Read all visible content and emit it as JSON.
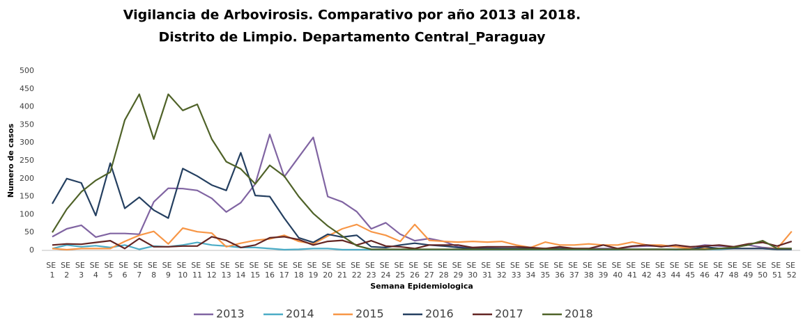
{
  "chart_data": {
    "type": "line",
    "title": "Vigilancia de Arbovirosis. Comparativo por año 2013 al 2018.",
    "subtitle": "Distrito de Limpio. Departamento Central_Paraguay",
    "x_label": "Semana Epidemiologica",
    "y_label": "Numero de casos",
    "categories": [
      "SE 1",
      "SE 2",
      "SE 3",
      "SE 4",
      "SE 5",
      "SE 6",
      "SE 7",
      "SE 8",
      "SE 9",
      "SE 10",
      "SE 11",
      "SE 12",
      "SE 13",
      "SE 14",
      "SE 15",
      "SE 16",
      "SE 17",
      "SE 18",
      "SE 19",
      "SE 20",
      "SE 21",
      "SE 22",
      "SE 23",
      "SE 24",
      "SE 25",
      "SE 26",
      "SE 27",
      "SE 28",
      "SE 29",
      "SE 30",
      "SE 31",
      "SE 32",
      "SE 33",
      "SE 34",
      "SE 35",
      "SE 36",
      "SE 37",
      "SE 38",
      "SE 39",
      "SE 40",
      "SE 41",
      "SE 42",
      "SE 43",
      "SE 44",
      "SE 45",
      "SE 46",
      "SE 47",
      "SE 48",
      "SE 49",
      "SE 50",
      "SE 51",
      "SE 52"
    ],
    "ylim": [
      0,
      500
    ],
    "yticks": [
      0,
      50,
      100,
      150,
      200,
      250,
      300,
      350,
      400,
      450,
      500
    ],
    "grid": false,
    "legend": "bottom",
    "series": [
      {
        "name": "2013",
        "color": "#8064a2",
        "values": [
          38,
          60,
          70,
          37,
          47,
          47,
          45,
          135,
          173,
          172,
          167,
          145,
          107,
          133,
          185,
          323,
          205,
          260,
          315,
          150,
          135,
          108,
          60,
          77,
          45,
          27,
          33,
          25,
          10,
          8,
          7,
          5,
          5,
          5,
          5,
          5,
          5,
          5,
          5,
          5,
          10,
          12,
          12,
          10,
          8,
          15,
          12,
          10,
          15,
          8,
          5,
          5
        ]
      },
      {
        "name": "2014",
        "color": "#4bacc6",
        "values": [
          5,
          15,
          10,
          13,
          8,
          15,
          3,
          12,
          10,
          15,
          22,
          15,
          12,
          8,
          8,
          5,
          2,
          3,
          5,
          5,
          2,
          2,
          2,
          2,
          2,
          2,
          2,
          2,
          2,
          2,
          2,
          2,
          2,
          2,
          2,
          2,
          2,
          2,
          2,
          2,
          3,
          3,
          3,
          2,
          3,
          3,
          3,
          5,
          5,
          5,
          3,
          3
        ]
      },
      {
        "name": "2015",
        "color": "#f79646",
        "values": [
          5,
          2,
          5,
          5,
          5,
          25,
          42,
          53,
          18,
          62,
          52,
          48,
          10,
          20,
          28,
          32,
          42,
          25,
          18,
          40,
          60,
          72,
          52,
          42,
          25,
          72,
          28,
          25,
          23,
          25,
          23,
          25,
          15,
          8,
          23,
          15,
          15,
          18,
          15,
          15,
          23,
          15,
          15,
          10,
          5,
          5,
          5,
          5,
          5,
          5,
          5,
          53
        ]
      },
      {
        "name": "2016",
        "color": "#243f60",
        "values": [
          130,
          200,
          188,
          97,
          243,
          117,
          148,
          112,
          90,
          228,
          207,
          182,
          167,
          272,
          153,
          150,
          90,
          35,
          22,
          45,
          37,
          42,
          10,
          8,
          15,
          20,
          15,
          12,
          8,
          5,
          5,
          5,
          5,
          5,
          5,
          5,
          5,
          3,
          3,
          3,
          3,
          3,
          3,
          3,
          3,
          10,
          5,
          5,
          5,
          5,
          3,
          3
        ]
      },
      {
        "name": "2017",
        "color": "#632523",
        "values": [
          15,
          18,
          17,
          22,
          27,
          5,
          33,
          10,
          10,
          12,
          12,
          38,
          28,
          8,
          15,
          35,
          38,
          30,
          15,
          25,
          28,
          15,
          27,
          12,
          10,
          5,
          15,
          15,
          15,
          8,
          10,
          10,
          10,
          8,
          5,
          10,
          5,
          5,
          15,
          5,
          12,
          15,
          10,
          15,
          10,
          12,
          15,
          10,
          18,
          22,
          12,
          25
        ]
      },
      {
        "name": "2018",
        "color": "#4f6228",
        "values": [
          50,
          115,
          163,
          195,
          218,
          363,
          435,
          310,
          435,
          390,
          407,
          310,
          247,
          227,
          185,
          237,
          207,
          150,
          103,
          68,
          40,
          13,
          3,
          3,
          3,
          3,
          3,
          3,
          3,
          3,
          3,
          3,
          3,
          3,
          3,
          3,
          3,
          3,
          3,
          3,
          3,
          3,
          3,
          3,
          3,
          3,
          5,
          8,
          15,
          27,
          5,
          5
        ]
      }
    ]
  }
}
